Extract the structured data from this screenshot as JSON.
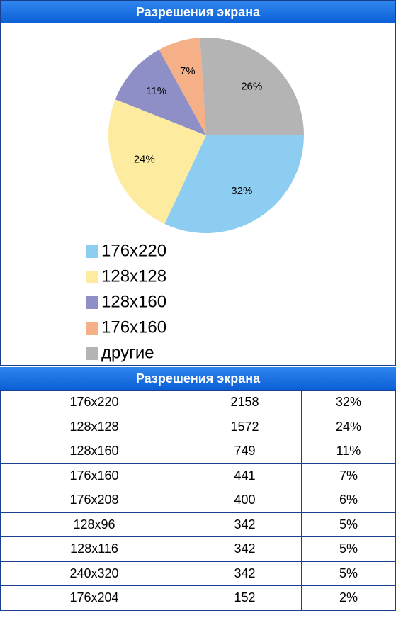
{
  "chart_data": {
    "type": "pie",
    "title": "Разрешения экрана",
    "categories": [
      "176x220",
      "128x128",
      "128x160",
      "176x160",
      "другие"
    ],
    "values": [
      32,
      24,
      11,
      7,
      26
    ],
    "value_labels": [
      "32%",
      "24%",
      "11%",
      "7%",
      "26%"
    ],
    "colors": [
      "#8ecdf2",
      "#fdeba0",
      "#8f8fc8",
      "#f5b088",
      "#b4b4b4"
    ],
    "legend": "bottom"
  },
  "table": {
    "title": "Разрешения экрана",
    "rows": [
      [
        "176x220",
        "2158",
        "32%"
      ],
      [
        "128x128",
        "1572",
        "24%"
      ],
      [
        "128x160",
        "749",
        "11%"
      ],
      [
        "176x160",
        "441",
        "7%"
      ],
      [
        "176x208",
        "400",
        "6%"
      ],
      [
        "128x96",
        "342",
        "5%"
      ],
      [
        "128x116",
        "342",
        "5%"
      ],
      [
        "240x320",
        "342",
        "5%"
      ],
      [
        "176x204",
        "152",
        "2%"
      ]
    ]
  }
}
